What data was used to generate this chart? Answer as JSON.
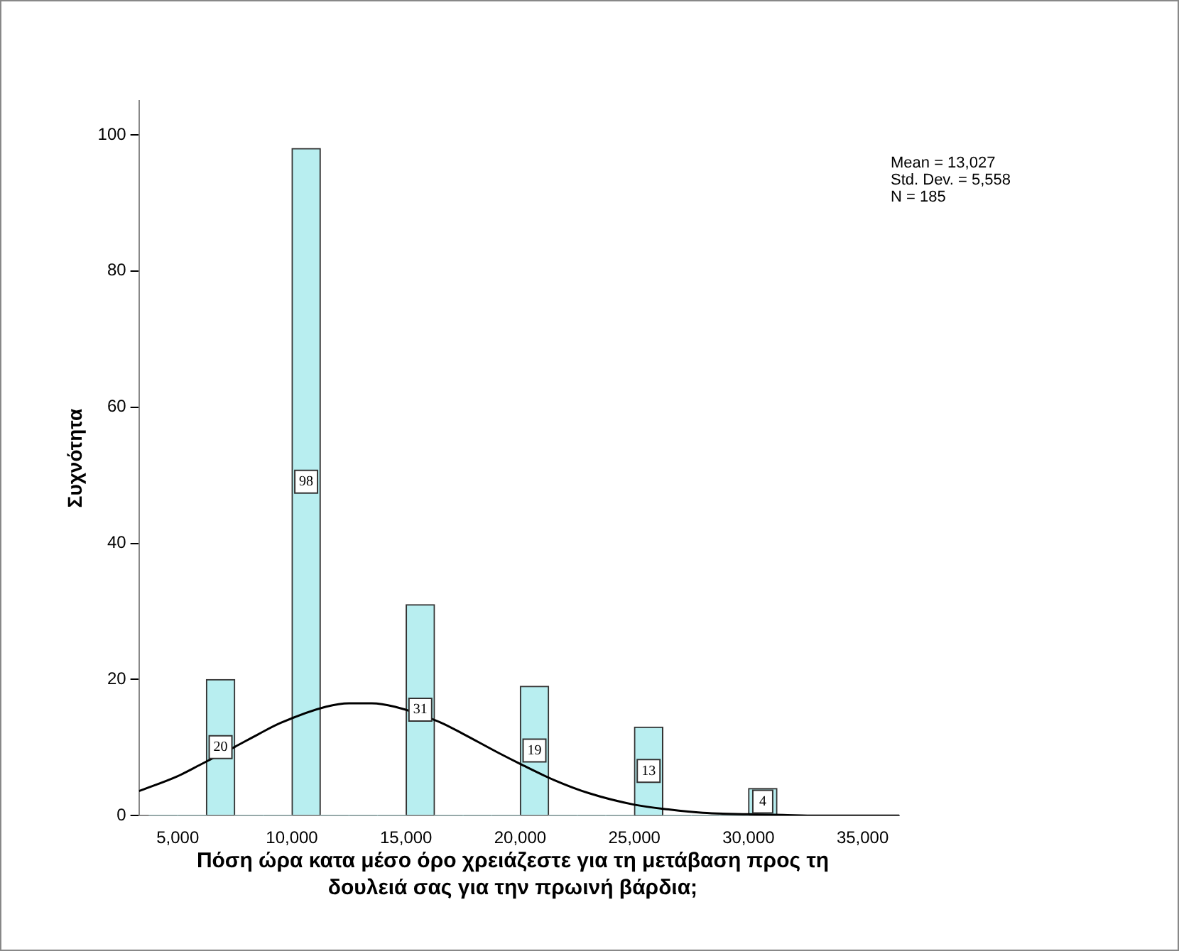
{
  "chart_data": {
    "type": "histogram",
    "ylabel": "Συχνότητα",
    "xlabel": "Πόση ώρα κατα μέσο όρο χρειάζεστε για τη μετάβαση προς τη δουλειά σας για την πρωινή βάρδια;",
    "annotations": [
      "Mean = 13,027",
      "Std. Dev. = 5,558",
      "N = 185"
    ],
    "bins": [
      3750,
      5000,
      6250,
      7500,
      8750,
      10000,
      11250,
      12500,
      13750,
      15000,
      16250,
      17500,
      18750,
      20000,
      21250,
      22500,
      23750,
      25000,
      26250,
      27500,
      28750,
      30000,
      31250
    ],
    "values": [
      0,
      0,
      20,
      0,
      0,
      98,
      0,
      0,
      0,
      31,
      0,
      0,
      0,
      19,
      0,
      0,
      0,
      13,
      0,
      0,
      0,
      4
    ],
    "value_labels": [
      null,
      null,
      "20",
      null,
      null,
      "98",
      null,
      null,
      null,
      "31",
      null,
      null,
      null,
      "19",
      null,
      null,
      null,
      "13",
      null,
      null,
      null,
      "4"
    ],
    "color": "#b8eef0",
    "series": [
      {
        "type": "line",
        "color": "#000000",
        "x": [
          3300,
          5000,
          6000,
          7500,
          8500,
          9500,
          11500,
          12500,
          13500,
          14500,
          16500,
          17500,
          19000,
          20000,
          21500,
          23000,
          25000,
          26500,
          28000,
          30000,
          31500,
          33000,
          36600
        ],
        "values": [
          3.6,
          5.8,
          7.5,
          10.1,
          11.9,
          13.6,
          16.0,
          16.5,
          16.5,
          16.0,
          13.7,
          12.0,
          9.3,
          7.6,
          5.2,
          3.3,
          1.6,
          0.9,
          0.4,
          0.2,
          0.1,
          0,
          0
        ]
      }
    ],
    "xlim": [
      3300,
      36600
    ],
    "xticks": [
      {
        "value": 5000,
        "label": "5,000"
      },
      {
        "value": 10000,
        "label": "10,000"
      },
      {
        "value": 15000,
        "label": "15,000"
      },
      {
        "value": 20000,
        "label": "20,000"
      },
      {
        "value": 25000,
        "label": "25,000"
      },
      {
        "value": 30000,
        "label": "30,000"
      },
      {
        "value": 35000,
        "label": "35,000"
      }
    ],
    "ylim": [
      0,
      105
    ],
    "yticks": [
      0,
      20,
      40,
      60,
      80,
      100
    ],
    "grid": false,
    "legend": false
  }
}
